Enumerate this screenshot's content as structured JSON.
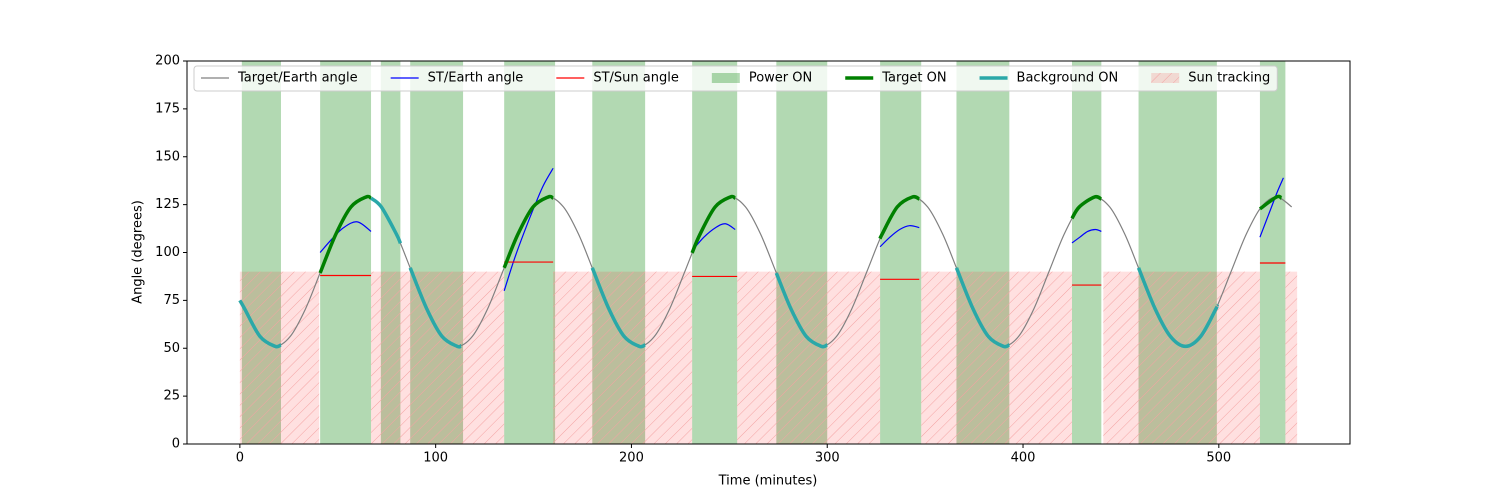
{
  "chart_data": {
    "type": "line",
    "x_label": "Time (minutes)",
    "y_label": "Angle (degrees)",
    "xlim": [
      -27,
      567
    ],
    "ylim": [
      0,
      200
    ],
    "xticks": [
      0,
      100,
      200,
      300,
      400,
      500
    ],
    "yticks": [
      0,
      25,
      50,
      75,
      100,
      125,
      150,
      175,
      200
    ],
    "legend": "upper left",
    "series": [
      {
        "name": "Target/Earth angle",
        "kind": "line",
        "style": "thin",
        "color": "#808080",
        "x": [
          0,
          2.5,
          10.25,
          18,
          25.75,
          33.5,
          41.25,
          49,
          56.75,
          64.5,
          72.25,
          80,
          87.75,
          95.5,
          103.25,
          111,
          118.75,
          126.5,
          134.25,
          142,
          149.75,
          157.5,
          165.25,
          173,
          180.75,
          188.5,
          196.25,
          204,
          211.75,
          219.5,
          227.25,
          235,
          242.75,
          250.5,
          258.25,
          266,
          273.75,
          281.5,
          289.25,
          297,
          304.75,
          312.5,
          320.25,
          328,
          335.75,
          343.5,
          351.25,
          359,
          366.75,
          374.5,
          382.25,
          390,
          397.75,
          405.5,
          413.25,
          421,
          428.75,
          436.5,
          444.25,
          452,
          459.75,
          467.5,
          475.25,
          483,
          490.75,
          498.5,
          506.25,
          514,
          521.75,
          529.5,
          537.25
        ],
        "values": [
          75,
          70.5,
          56.2,
          51,
          56.2,
          70.5,
          90,
          109.5,
          123.8,
          129,
          123.8,
          109.5,
          90,
          70.5,
          56.2,
          51,
          56.2,
          70.5,
          90,
          109.5,
          123.8,
          129,
          123.8,
          109.5,
          90,
          70.5,
          56.2,
          51,
          56.2,
          70.5,
          90,
          109.5,
          123.8,
          129,
          123.8,
          109.5,
          90,
          70.5,
          56.2,
          51,
          56.2,
          70.5,
          90,
          109.5,
          123.8,
          129,
          123.8,
          109.5,
          90,
          70.5,
          56.2,
          51,
          56.2,
          70.5,
          90,
          109.5,
          123.8,
          129,
          123.8,
          109.5,
          90,
          70.5,
          56.2,
          51,
          56.2,
          70.5,
          90,
          109.5,
          123.8,
          129,
          123.8
        ]
      },
      {
        "name": "ST/Earth angle",
        "kind": "line",
        "style": "thin",
        "color": "#0000ff",
        "x": [
          41,
          47,
          53,
          60,
          67,
          100,
          135,
          140,
          145,
          150,
          155,
          160,
          200,
          231,
          237,
          243,
          248,
          253,
          290,
          327,
          332,
          337,
          342,
          347,
          380,
          425,
          429,
          433,
          437,
          440,
          480,
          521,
          524,
          527,
          530,
          533
        ],
        "values": [
          100,
          107,
          113,
          116,
          111,
          null,
          80,
          96,
          110,
          123,
          135,
          144,
          null,
          101,
          108,
          113,
          115,
          112,
          null,
          103,
          108,
          112,
          114,
          113,
          null,
          105,
          108,
          111,
          112,
          111,
          null,
          108,
          116,
          124,
          132,
          139
        ]
      },
      {
        "name": "ST/Sun angle",
        "kind": "line",
        "style": "thin",
        "color": "#ff0000",
        "x": [
          41,
          67,
          100,
          135,
          160,
          200,
          231,
          254,
          290,
          327,
          347,
          380,
          425,
          440,
          480,
          521,
          534
        ],
        "values": [
          88,
          88,
          null,
          95,
          95,
          null,
          87.5,
          87.5,
          null,
          86,
          86,
          null,
          83,
          83,
          null,
          94.5,
          94.5
        ]
      },
      {
        "name": "Power ON",
        "kind": "span",
        "color": "#008000",
        "alpha": 0.3,
        "spans": [
          [
            1,
            21
          ],
          [
            41,
            67
          ],
          [
            72,
            82
          ],
          [
            87,
            114
          ],
          [
            135,
            161
          ],
          [
            180,
            207
          ],
          [
            231,
            254
          ],
          [
            274,
            300
          ],
          [
            327,
            348
          ],
          [
            366,
            393
          ],
          [
            425,
            440
          ],
          [
            459,
            499
          ],
          [
            521,
            534
          ]
        ]
      },
      {
        "name": "Target ON",
        "kind": "line",
        "style": "thick",
        "color": "#008000",
        "x": [
          41,
          49,
          56.75,
          64.5,
          67,
          100,
          135,
          142,
          149.75,
          157.5,
          160,
          200,
          231,
          235,
          242.75,
          250.5,
          253,
          290,
          327,
          328,
          335.75,
          343.5,
          347,
          380,
          425,
          428.75,
          436.5,
          440,
          480,
          521,
          529.5,
          532
        ],
        "values": [
          89.3,
          109.5,
          123.8,
          129,
          128.4,
          null,
          92,
          109.5,
          123.8,
          129,
          128.4,
          null,
          99.8,
          109.5,
          123.8,
          129,
          128.4,
          null,
          107.2,
          109.5,
          123.8,
          129,
          127.9,
          null,
          117.8,
          123.8,
          129,
          127.9,
          null,
          122.8,
          129,
          128.4
        ]
      },
      {
        "name": "Background ON",
        "kind": "line",
        "style": "thick",
        "color": "#2aa8a8",
        "x": [
          0,
          2.5,
          10.25,
          18,
          21,
          40,
          67,
          72.25,
          80,
          82,
          84,
          87,
          95.5,
          103.25,
          111,
          113,
          150,
          180,
          188.5,
          196.25,
          204,
          207,
          240,
          274,
          281.5,
          289.25,
          297,
          300,
          340,
          366,
          374.5,
          382.25,
          390,
          393,
          420,
          459,
          467.5,
          475.25,
          483,
          490.75,
          498.5,
          499
        ],
        "values": [
          75,
          70.5,
          56.2,
          51,
          51.8,
          null,
          128.4,
          123.8,
          109.5,
          104.8,
          null,
          92,
          70.5,
          56.2,
          51,
          51.3,
          null,
          92,
          70.5,
          56.2,
          51,
          51.8,
          null,
          89.3,
          70.5,
          56.2,
          51,
          51.8,
          null,
          92,
          70.5,
          56.2,
          51,
          51.8,
          null,
          92,
          70.5,
          56.2,
          51,
          56.2,
          70.5,
          71.7
        ]
      },
      {
        "name": "Sun tracking",
        "kind": "span",
        "color": "#ff0000",
        "alpha": 0.12,
        "hatch": true,
        "top": 90,
        "spans": [
          [
            0,
            40.5
          ],
          [
            67,
            135
          ],
          [
            160,
            231
          ],
          [
            254,
            327
          ],
          [
            348,
            425
          ],
          [
            441,
            521
          ],
          [
            534,
            540
          ]
        ]
      }
    ]
  }
}
